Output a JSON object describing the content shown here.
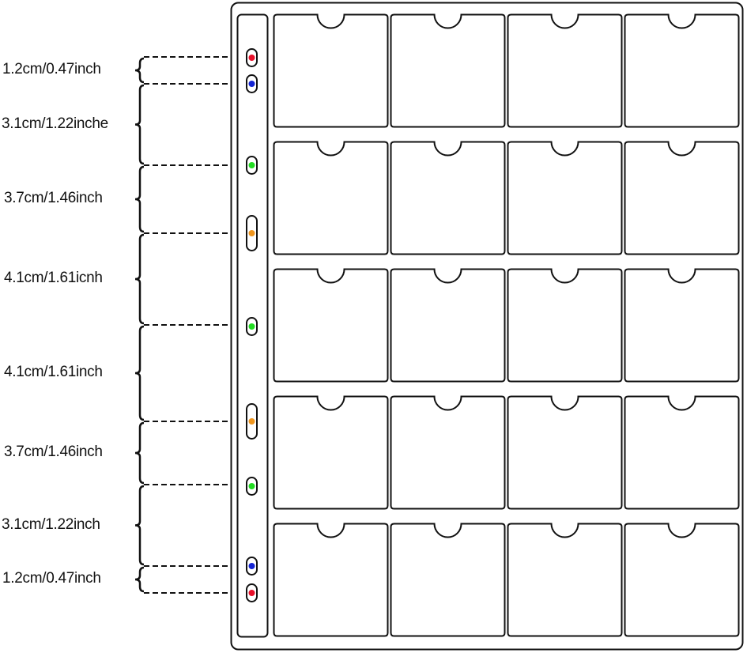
{
  "dimension_labels": [
    "1.2cm/0.47inch",
    "3.1cm/1.22inche",
    "3.7cm/1.46inch",
    "4.1cm/1.61icnh",
    "4.1cm/1.61inch",
    "3.7cm/1.46inch",
    "3.1cm/1.22inch",
    "1.2cm/0.47inch"
  ],
  "holes": [
    {
      "color": "#e8102a",
      "shape": "round"
    },
    {
      "color": "#1424d4",
      "shape": "round"
    },
    {
      "color": "#22dd22",
      "shape": "round"
    },
    {
      "color": "#f0961e",
      "shape": "slot"
    },
    {
      "color": "#22dd22",
      "shape": "round"
    },
    {
      "color": "#f0961e",
      "shape": "slot"
    },
    {
      "color": "#22dd22",
      "shape": "round"
    },
    {
      "color": "#1424d4",
      "shape": "round"
    },
    {
      "color": "#e8102a",
      "shape": "round"
    }
  ],
  "pockets": {
    "rows": 5,
    "columns": 4
  }
}
